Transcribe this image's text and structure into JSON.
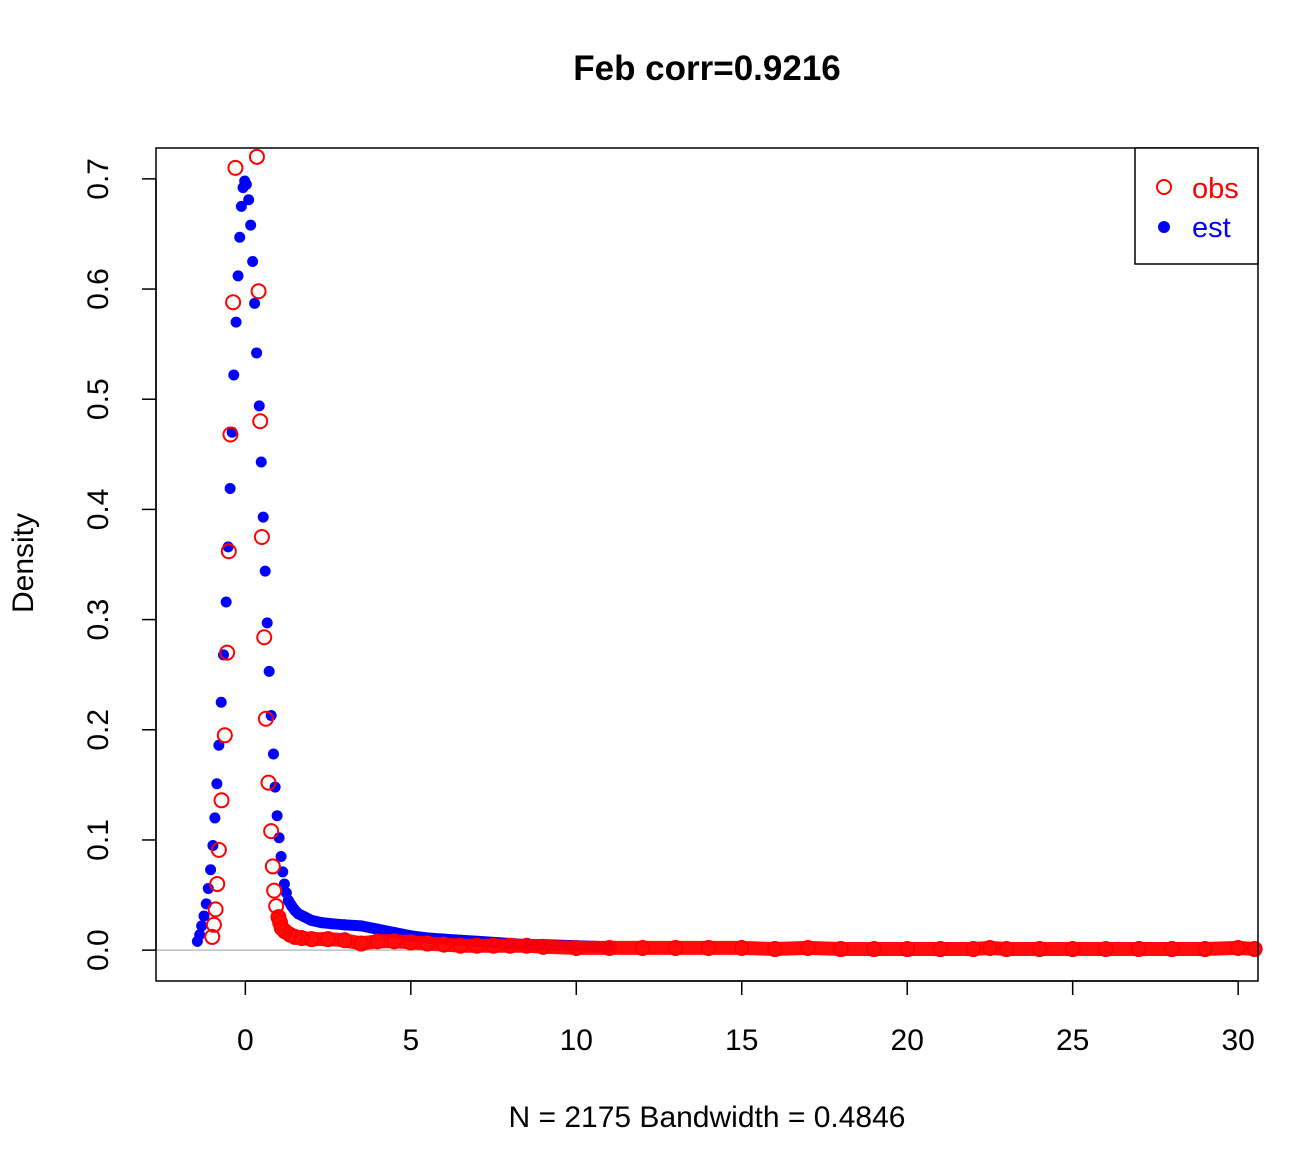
{
  "chart_data": {
    "type": "scatter",
    "title": "Feb corr=0.9216",
    "xlabel": "N = 2175   Bandwidth = 0.4846",
    "ylabel": "Density",
    "xlim": [
      -2.7,
      30.6
    ],
    "ylim": [
      -0.028,
      0.728
    ],
    "x_ticks": [
      0,
      5,
      10,
      15,
      20,
      25,
      30
    ],
    "x_tick_labels": [
      "0",
      "5",
      "10",
      "15",
      "20",
      "25",
      "30"
    ],
    "y_ticks": [
      0.0,
      0.1,
      0.2,
      0.3,
      0.4,
      0.5,
      0.6,
      0.7
    ],
    "y_tick_labels": [
      "0.0",
      "0.1",
      "0.2",
      "0.3",
      "0.4",
      "0.5",
      "0.6",
      "0.7"
    ],
    "grid": false,
    "legend_position": "top-right",
    "baseline": 0,
    "series": [
      {
        "name": "obs",
        "marker": "open-circle",
        "color": "#ff0000",
        "points": [
          [
            -1.0,
            0.012
          ],
          [
            -0.95,
            0.023
          ],
          [
            -0.9,
            0.037
          ],
          [
            -0.85,
            0.06
          ],
          [
            -0.8,
            0.091
          ],
          [
            -0.72,
            0.136
          ],
          [
            -0.62,
            0.195
          ],
          [
            -0.55,
            0.27
          ],
          [
            -0.5,
            0.362
          ],
          [
            -0.45,
            0.468
          ],
          [
            -0.37,
            0.588
          ],
          [
            -0.3,
            0.71
          ],
          [
            0.35,
            0.72
          ],
          [
            0.4,
            0.598
          ],
          [
            0.45,
            0.48
          ],
          [
            0.5,
            0.375
          ],
          [
            0.57,
            0.284
          ],
          [
            0.62,
            0.21
          ],
          [
            0.7,
            0.152
          ],
          [
            0.78,
            0.108
          ],
          [
            0.83,
            0.076
          ],
          [
            0.87,
            0.054
          ],
          [
            0.93,
            0.04
          ],
          [
            1.0,
            0.03
          ],
          [
            1.05,
            0.025
          ],
          [
            1.1,
            0.02
          ],
          [
            1.2,
            0.017
          ],
          [
            1.35,
            0.014
          ],
          [
            1.5,
            0.012
          ],
          [
            1.7,
            0.011
          ],
          [
            2.0,
            0.01
          ],
          [
            2.5,
            0.01
          ],
          [
            3.0,
            0.009
          ],
          [
            3.5,
            0.006
          ],
          [
            4.0,
            0.008
          ],
          [
            4.5,
            0.008
          ],
          [
            5.0,
            0.007
          ],
          [
            5.5,
            0.006
          ],
          [
            6.0,
            0.005
          ],
          [
            6.5,
            0.004
          ],
          [
            7.0,
            0.004
          ],
          [
            7.5,
            0.004
          ],
          [
            8.0,
            0.004
          ],
          [
            8.5,
            0.004
          ],
          [
            9.0,
            0.003
          ],
          [
            10.0,
            0.002
          ],
          [
            11.0,
            0.002
          ],
          [
            12.0,
            0.002
          ],
          [
            13.0,
            0.002
          ],
          [
            14.0,
            0.002
          ],
          [
            15.0,
            0.002
          ],
          [
            16.0,
            0.001
          ],
          [
            17.0,
            0.002
          ],
          [
            18.0,
            0.001
          ],
          [
            19.0,
            0.001
          ],
          [
            20.0,
            0.001
          ],
          [
            21.0,
            0.001
          ],
          [
            22.0,
            0.001
          ],
          [
            22.5,
            0.002
          ],
          [
            23.0,
            0.001
          ],
          [
            24.0,
            0.001
          ],
          [
            25.0,
            0.001
          ],
          [
            26.0,
            0.001
          ],
          [
            27.0,
            0.001
          ],
          [
            28.0,
            0.001
          ],
          [
            29.0,
            0.001
          ],
          [
            30.0,
            0.002
          ],
          [
            30.5,
            0.001
          ]
        ]
      },
      {
        "name": "est",
        "marker": "filled-circle",
        "color": "#0000ff",
        "points": [
          [
            -1.45,
            0.008
          ],
          [
            -1.38,
            0.014
          ],
          [
            -1.32,
            0.022
          ],
          [
            -1.25,
            0.031
          ],
          [
            -1.18,
            0.042
          ],
          [
            -1.12,
            0.056
          ],
          [
            -1.05,
            0.073
          ],
          [
            -0.98,
            0.095
          ],
          [
            -0.92,
            0.12
          ],
          [
            -0.86,
            0.151
          ],
          [
            -0.8,
            0.186
          ],
          [
            -0.73,
            0.225
          ],
          [
            -0.66,
            0.268
          ],
          [
            -0.58,
            0.316
          ],
          [
            -0.52,
            0.366
          ],
          [
            -0.46,
            0.419
          ],
          [
            -0.4,
            0.47
          ],
          [
            -0.35,
            0.522
          ],
          [
            -0.28,
            0.57
          ],
          [
            -0.22,
            0.612
          ],
          [
            -0.17,
            0.647
          ],
          [
            -0.12,
            0.675
          ],
          [
            -0.07,
            0.692
          ],
          [
            -0.02,
            0.698
          ],
          [
            0.03,
            0.695
          ],
          [
            0.1,
            0.681
          ],
          [
            0.16,
            0.658
          ],
          [
            0.22,
            0.625
          ],
          [
            0.28,
            0.587
          ],
          [
            0.34,
            0.542
          ],
          [
            0.42,
            0.494
          ],
          [
            0.48,
            0.443
          ],
          [
            0.54,
            0.393
          ],
          [
            0.6,
            0.344
          ],
          [
            0.66,
            0.297
          ],
          [
            0.72,
            0.253
          ],
          [
            0.78,
            0.213
          ],
          [
            0.85,
            0.178
          ],
          [
            0.9,
            0.148
          ],
          [
            0.96,
            0.122
          ],
          [
            1.02,
            0.102
          ],
          [
            1.08,
            0.085
          ],
          [
            1.13,
            0.071
          ],
          [
            1.18,
            0.06
          ],
          [
            1.24,
            0.052
          ],
          [
            1.3,
            0.045
          ],
          [
            1.4,
            0.04
          ],
          [
            1.5,
            0.036
          ],
          [
            1.6,
            0.033
          ],
          [
            1.8,
            0.03
          ],
          [
            2.0,
            0.027
          ],
          [
            2.3,
            0.025
          ],
          [
            2.6,
            0.024
          ],
          [
            3.0,
            0.023
          ],
          [
            3.5,
            0.022
          ],
          [
            4.0,
            0.019
          ],
          [
            4.5,
            0.016
          ],
          [
            5.0,
            0.013
          ],
          [
            5.5,
            0.011
          ],
          [
            6.0,
            0.01
          ],
          [
            6.5,
            0.009
          ],
          [
            7.0,
            0.008
          ],
          [
            7.5,
            0.007
          ],
          [
            8.0,
            0.006
          ],
          [
            8.5,
            0.005
          ],
          [
            9.0,
            0.005
          ],
          [
            10.0,
            0.004
          ],
          [
            11.0,
            0.003
          ]
        ]
      }
    ]
  },
  "legend": {
    "items": [
      {
        "label": "obs",
        "color": "#ff0000",
        "marker": "open-circle"
      },
      {
        "label": "est",
        "color": "#0000ff",
        "marker": "filled-circle"
      }
    ]
  },
  "colors": {
    "axis": "#000000",
    "baseline": "#bebebe",
    "background": "#ffffff"
  }
}
